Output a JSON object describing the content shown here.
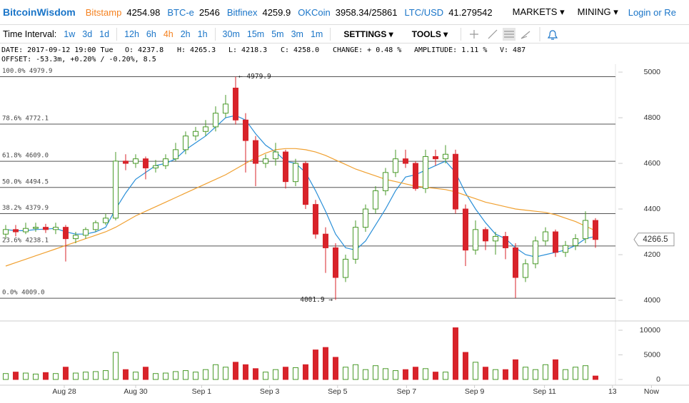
{
  "header": {
    "brand": "BitcoinWisdom",
    "exchanges": [
      {
        "name": "Bitstamp",
        "price": "4254.98"
      },
      {
        "name": "BTC-e",
        "price": "2546"
      },
      {
        "name": "Bitfinex",
        "price": "4259.9"
      },
      {
        "name": "OKCoin",
        "price": "3958.34/25861"
      },
      {
        "name": "LTC/USD",
        "price": "41.279542"
      }
    ],
    "menus": [
      "MARKETS",
      "MINING"
    ],
    "login": "Login or Re"
  },
  "toolbar": {
    "label": "Time Interval:",
    "intervals": [
      "1w",
      "3d",
      "1d",
      "12h",
      "6h",
      "4h",
      "2h",
      "1h",
      "30m",
      "15m",
      "5m",
      "3m",
      "1m"
    ],
    "active": "4h",
    "settings": "SETTINGS",
    "tools": "TOOLS"
  },
  "info": {
    "line1": [
      "DATE: 2017-09-12 19:00 Tue",
      "O: 4237.8",
      "H: 4265.3",
      "L: 4218.3",
      "C: 4258.0",
      "CHANGE: + 0.48 %",
      "AMPLITUDE: 1.11 %",
      "V: 487"
    ],
    "line2": "OFFSET: -53.3m, +0.20% / -0.20%, 8.5"
  },
  "chart_data": {
    "type": "candlestick",
    "open": [
      4290,
      4310,
      4300,
      4315,
      4320,
      4310,
      4320,
      4270,
      4285,
      4310,
      4340,
      4360,
      4610,
      4600,
      4620,
      4580,
      4590,
      4620,
      4660,
      4720,
      4740,
      4760,
      4820,
      4930,
      4790,
      4700,
      4600,
      4620,
      4650,
      4520,
      4600,
      4420,
      4290,
      4230,
      4100,
      4180,
      4320,
      4400,
      4480,
      4560,
      4620,
      4600,
      4490,
      4630,
      4620,
      4640,
      4400,
      4220,
      4310,
      4260,
      4280,
      4230,
      4100,
      4160,
      4260,
      4300,
      4210,
      4240,
      4270,
      4350
    ],
    "high": [
      4330,
      4330,
      4340,
      4340,
      4335,
      4340,
      4330,
      4300,
      4320,
      4350,
      4380,
      4650,
      4640,
      4640,
      4630,
      4615,
      4640,
      4690,
      4740,
      4760,
      4790,
      4850,
      4900,
      4979.9,
      4820,
      4720,
      4640,
      4690,
      4660,
      4620,
      4610,
      4440,
      4320,
      4250,
      4200,
      4350,
      4420,
      4500,
      4580,
      4660,
      4660,
      4610,
      4660,
      4660,
      4680,
      4660,
      4420,
      4350,
      4320,
      4300,
      4300,
      4250,
      4180,
      4280,
      4320,
      4310,
      4260,
      4290,
      4390,
      4360
    ],
    "low": [
      4270,
      4280,
      4290,
      4300,
      4295,
      4290,
      4170,
      4250,
      4270,
      4300,
      4330,
      4350,
      4570,
      4580,
      4530,
      4560,
      4575,
      4610,
      4640,
      4700,
      4720,
      4740,
      4800,
      4770,
      4560,
      4500,
      4580,
      4590,
      4490,
      4500,
      4400,
      4270,
      4120,
      4001.9,
      4080,
      4160,
      4300,
      4380,
      4460,
      4540,
      4580,
      4480,
      4470,
      4590,
      4600,
      4380,
      4150,
      4200,
      4220,
      4200,
      4180,
      4010,
      4080,
      4140,
      4240,
      4190,
      4190,
      4220,
      4250,
      4230
    ],
    "close": [
      4310,
      4300,
      4315,
      4320,
      4310,
      4320,
      4270,
      4285,
      4310,
      4340,
      4360,
      4610,
      4600,
      4620,
      4580,
      4590,
      4620,
      4660,
      4720,
      4740,
      4760,
      4820,
      4860,
      4790,
      4700,
      4600,
      4620,
      4650,
      4520,
      4600,
      4420,
      4290,
      4230,
      4100,
      4180,
      4320,
      4400,
      4480,
      4560,
      4620,
      4600,
      4490,
      4630,
      4620,
      4640,
      4400,
      4220,
      4310,
      4260,
      4280,
      4230,
      4100,
      4160,
      4260,
      4300,
      4210,
      4240,
      4270,
      4350,
      4266.5
    ],
    "up_color": "#4a9a2a",
    "down_color": "#d8232a",
    "moving_averages": [
      {
        "color": "#2a8fd8",
        "values": [
          4310,
          4305,
          4305,
          4310,
          4312,
          4315,
          4300,
          4290,
          4290,
          4300,
          4320,
          4400,
          4470,
          4530,
          4560,
          4590,
          4600,
          4620,
          4660,
          4690,
          4720,
          4760,
          4800,
          4810,
          4790,
          4730,
          4680,
          4650,
          4610,
          4600,
          4560,
          4480,
          4390,
          4290,
          4230,
          4220,
          4260,
          4330,
          4400,
          4480,
          4540,
          4550,
          4570,
          4590,
          4610,
          4560,
          4470,
          4400,
          4340,
          4290,
          4270,
          4230,
          4200,
          4190,
          4200,
          4210,
          4220,
          4240,
          4270,
          4280
        ]
      },
      {
        "color": "#f0a030",
        "values": [
          4150,
          4165,
          4180,
          4195,
          4210,
          4225,
          4240,
          4255,
          4270,
          4285,
          4300,
          4320,
          4345,
          4370,
          4390,
          4410,
          4430,
          4450,
          4470,
          4490,
          4510,
          4530,
          4550,
          4575,
          4600,
          4625,
          4645,
          4660,
          4665,
          4665,
          4660,
          4650,
          4635,
          4615,
          4595,
          4575,
          4560,
          4545,
          4530,
          4520,
          4510,
          4500,
          4495,
          4490,
          4485,
          4475,
          4460,
          4445,
          4430,
          4420,
          4410,
          4400,
          4395,
          4390,
          4385,
          4375,
          4360,
          4345,
          4325,
          4305
        ]
      }
    ],
    "fib_levels": [
      {
        "value": 4979.9,
        "label": "100.0% 4979.9"
      },
      {
        "value": 4772.1,
        "label": "78.6% 4772.1"
      },
      {
        "value": 4609.0,
        "label": "61.8% 4609.0"
      },
      {
        "value": 4494.5,
        "label": "50.0% 4494.5"
      },
      {
        "value": 4379.9,
        "label": "38.2% 4379.9"
      },
      {
        "value": 4238.1,
        "label": "23.6% 4238.1"
      },
      {
        "value": 4009.0,
        "label": "0.0% 4009.0"
      }
    ],
    "max_label": {
      "value": 4979.9,
      "label": "← 4979.9"
    },
    "min_label": {
      "value": 4001.9,
      "label": "4001.9 →"
    },
    "last_price": 4266.5,
    "ylim": [
      3925,
      5019
    ],
    "yticks": [
      4000,
      4200,
      4400,
      4600,
      4800,
      5000
    ],
    "xlim": [
      -0.57,
      61
    ],
    "xticks": [
      {
        "value": 5.86,
        "label": "Aug 28"
      },
      {
        "value": 13,
        "label": "Aug 30"
      },
      {
        "value": 19.6,
        "label": "Sep 1"
      },
      {
        "value": 26.4,
        "label": "Sep 3"
      },
      {
        "value": 33.2,
        "label": "Sep 5"
      },
      {
        "value": 40.1,
        "label": "Sep 7"
      },
      {
        "value": 46.9,
        "label": "Sep 9"
      },
      {
        "value": 53.9,
        "label": "Sep 11"
      },
      {
        "value": 60.7,
        "label": "13"
      },
      {
        "value": 64.6,
        "label": "Now"
      }
    ],
    "volume": {
      "values": [
        1200,
        1500,
        1300,
        1100,
        1400,
        1200,
        2500,
        1300,
        1500,
        1600,
        1800,
        5500,
        2000,
        1500,
        2500,
        1200,
        1300,
        1600,
        1800,
        1500,
        2000,
        3000,
        2500,
        3500,
        3000,
        2200,
        1500,
        2000,
        2500,
        2400,
        3000,
        6000,
        6500,
        4500,
        2500,
        3000,
        2000,
        2800,
        2200,
        1800,
        2000,
        2500,
        2200,
        1500,
        1500,
        10500,
        5500,
        3500,
        2500,
        2000,
        2000,
        4000,
        2500,
        2000,
        3000,
        4000,
        2000,
        2500,
        2800,
        700
      ],
      "ylim": [
        0,
        11159
      ],
      "yticks": [
        0,
        5000,
        10000
      ]
    }
  }
}
